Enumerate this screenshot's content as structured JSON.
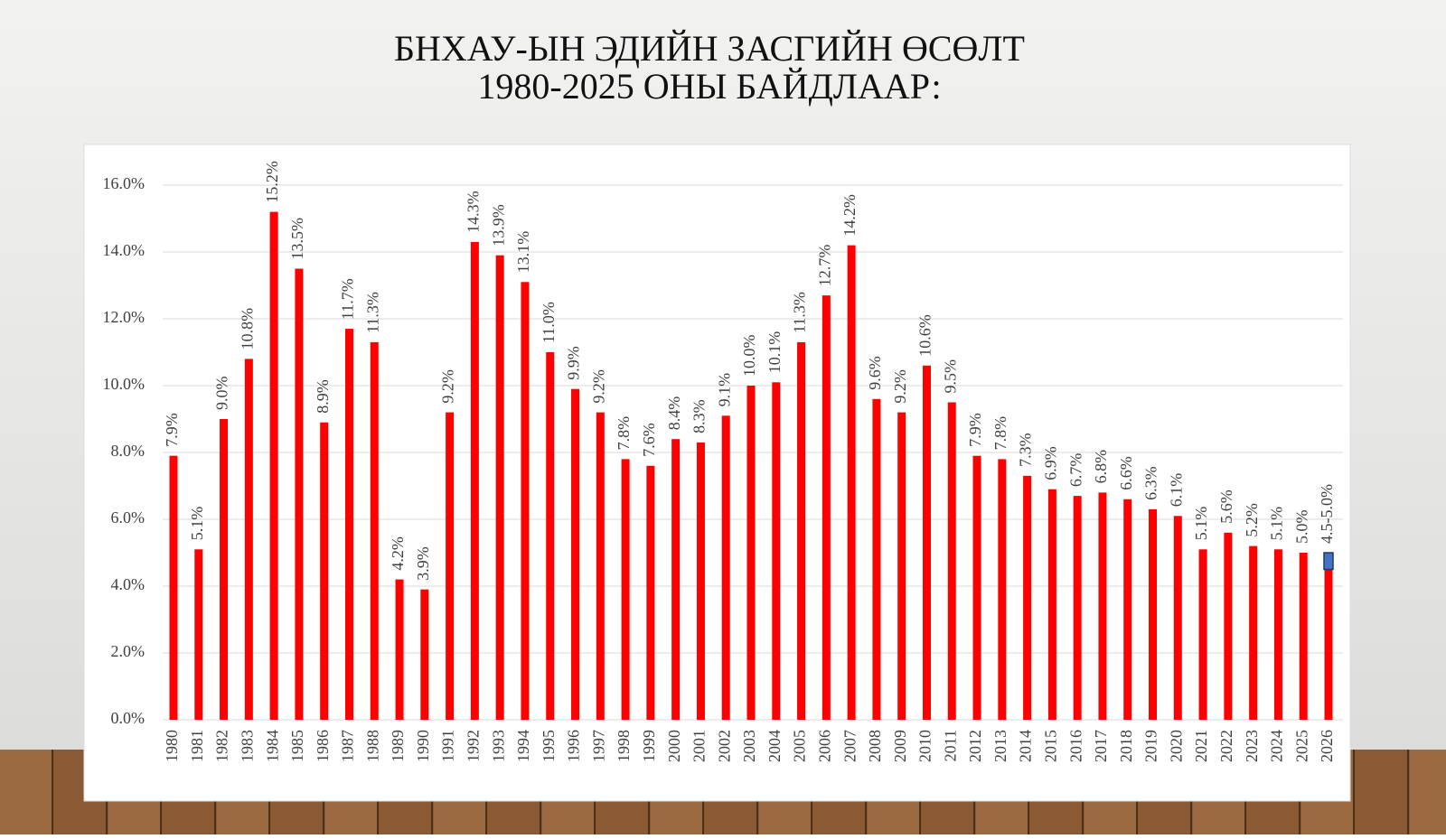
{
  "chart_data": {
    "type": "bar",
    "title": "БНХАУ-ЫН ЭДИЙН ЗАСГИЙН ӨСӨЛТ",
    "subtitle": "1980-2025 ОНЫ БАЙДЛААР:",
    "categories": [
      "1980",
      "1981",
      "1982",
      "1983",
      "1984",
      "1985",
      "1986",
      "1987",
      "1988",
      "1989",
      "1990",
      "1991",
      "1992",
      "1993",
      "1994",
      "1995",
      "1996",
      "1997",
      "1998",
      "1999",
      "2000",
      "2001",
      "2002",
      "2003",
      "2004",
      "2005",
      "2006",
      "2007",
      "2008",
      "2009",
      "2010",
      "2011",
      "2012",
      "2013",
      "2014",
      "2015",
      "2016",
      "2017",
      "2018",
      "2019",
      "2020",
      "2021",
      "2022",
      "2023",
      "2024",
      "2025",
      "2026"
    ],
    "values": [
      7.9,
      5.1,
      9.0,
      10.8,
      15.2,
      13.5,
      8.9,
      11.7,
      11.3,
      4.2,
      3.9,
      9.2,
      14.3,
      13.9,
      13.1,
      11.0,
      9.9,
      9.2,
      7.8,
      7.6,
      8.4,
      8.3,
      9.1,
      10.0,
      10.1,
      11.3,
      12.7,
      14.2,
      9.6,
      9.2,
      10.6,
      9.5,
      7.9,
      7.8,
      7.3,
      6.9,
      6.7,
      6.8,
      6.6,
      6.3,
      6.1,
      5.1,
      5.6,
      5.2,
      5.1,
      5.0,
      4.5
    ],
    "value_labels": [
      "7.9%",
      "5.1%",
      "9.0%",
      "10.8%",
      "15.2%",
      "13.5%",
      "8.9%",
      "11.7%",
      "11.3%",
      "4.2%",
      "3.9%",
      "9.2%",
      "14.3%",
      "13.9%",
      "13.1%",
      "11.0%",
      "9.9%",
      "9.2%",
      "7.8%",
      "7.6%",
      "8.4%",
      "8.3%",
      "9.1%",
      "10.0%",
      "10.1%",
      "11.3%",
      "12.7%",
      "14.2%",
      "9.6%",
      "9.2%",
      "10.6%",
      "9.5%",
      "7.9%",
      "7.8%",
      "7.3%",
      "6.9%",
      "6.7%",
      "6.8%",
      "6.6%",
      "6.3%",
      "6.1%",
      "5.1%",
      "5.6%",
      "5.2%",
      "5.1%",
      "5.0%",
      "4.5-5.0%"
    ],
    "color": "#ff0000",
    "range_top": 5.0,
    "range_color": "#4472c4",
    "ylim": [
      0,
      16
    ],
    "yticks": [
      {
        "value": 0,
        "label": "0.0%"
      },
      {
        "value": 2,
        "label": "2.0%"
      },
      {
        "value": 4,
        "label": "4.0%"
      },
      {
        "value": 6,
        "label": "6.0%"
      },
      {
        "value": 8,
        "label": "8.0%"
      },
      {
        "value": 10,
        "label": "10.0%"
      },
      {
        "value": 12,
        "label": "12.0%"
      },
      {
        "value": 14,
        "label": "14.0%"
      },
      {
        "value": 16,
        "label": "16.0%"
      }
    ],
    "grid": true
  }
}
